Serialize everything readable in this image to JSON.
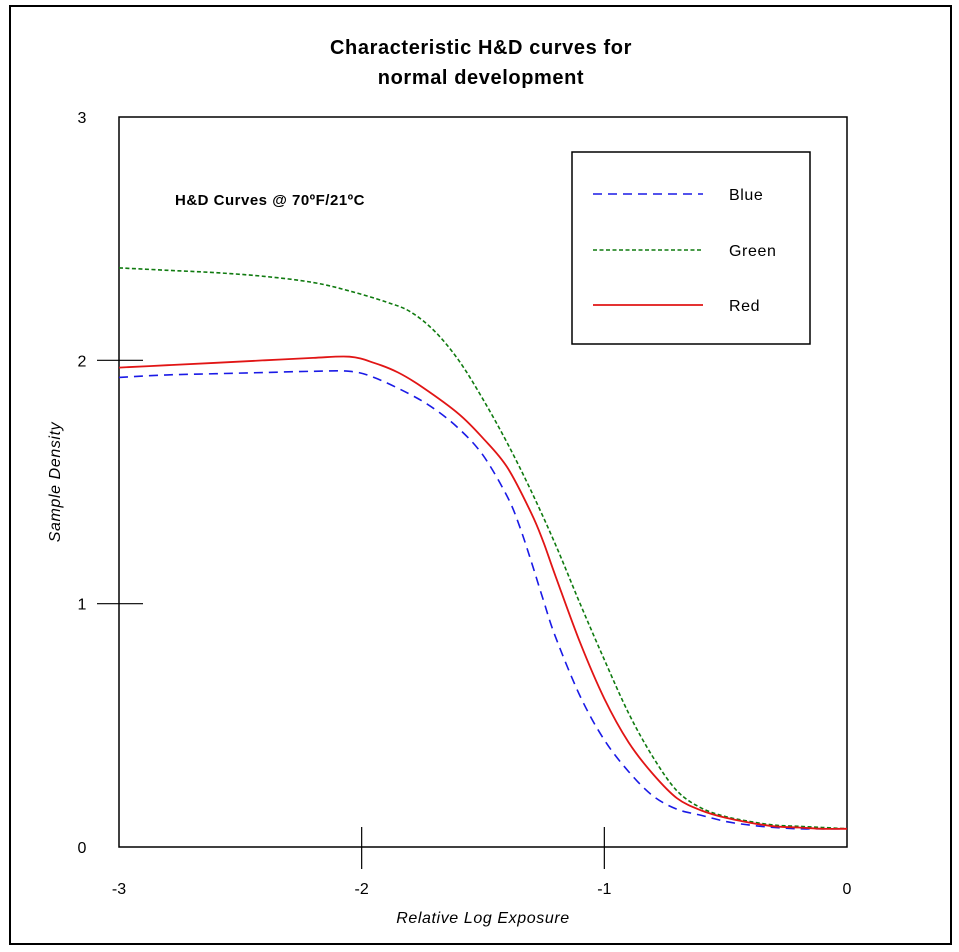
{
  "chart_data": {
    "type": "line",
    "title_lines": [
      "Characteristic H&D curves for",
      "normal development"
    ],
    "annotation": "H&D Curves @ 70ºF/21ºC",
    "xlabel": "Relative Log Exposure",
    "ylabel": "Sample Density",
    "xlim": [
      -3,
      0
    ],
    "ylim": [
      0,
      3
    ],
    "x_ticks": [
      -3,
      -2,
      -1,
      0
    ],
    "y_ticks": [
      0,
      1,
      2,
      3
    ],
    "x_tick_labels": [
      "-3",
      "-2",
      "-1",
      "0"
    ],
    "y_tick_labels": [
      "0",
      "1",
      "2",
      "3"
    ],
    "grid": false,
    "legend_position": "top-right",
    "series": [
      {
        "name": "Blue",
        "color": "#1a1ae6",
        "dash": "dashed",
        "x": [
          -3.0,
          -2.8,
          -2.6,
          -2.4,
          -2.2,
          -2.05,
          -1.95,
          -1.8,
          -1.7,
          -1.6,
          -1.5,
          -1.4,
          -1.35,
          -1.3,
          -1.25,
          -1.2,
          -1.1,
          -1.0,
          -0.9,
          -0.8,
          -0.7,
          -0.6,
          -0.5,
          -0.4,
          -0.3,
          -0.2,
          -0.1,
          0.0
        ],
        "y": [
          1.93,
          1.94,
          1.945,
          1.95,
          1.955,
          1.955,
          1.93,
          1.86,
          1.8,
          1.72,
          1.61,
          1.44,
          1.32,
          1.17,
          1.01,
          0.86,
          0.62,
          0.44,
          0.31,
          0.21,
          0.155,
          0.13,
          0.105,
          0.09,
          0.08,
          0.075,
          0.075,
          0.075
        ]
      },
      {
        "name": "Green",
        "color": "#0f7a0f",
        "dash": "dotted",
        "x": [
          -3.0,
          -2.8,
          -2.6,
          -2.4,
          -2.2,
          -2.05,
          -1.9,
          -1.8,
          -1.7,
          -1.6,
          -1.5,
          -1.4,
          -1.3,
          -1.2,
          -1.1,
          -1.0,
          -0.9,
          -0.8,
          -0.7,
          -0.6,
          -0.5,
          -0.4,
          -0.3,
          -0.2,
          -0.1,
          0.0
        ],
        "y": [
          2.38,
          2.37,
          2.36,
          2.345,
          2.32,
          2.285,
          2.24,
          2.2,
          2.12,
          2.0,
          1.84,
          1.66,
          1.46,
          1.24,
          1.0,
          0.77,
          0.55,
          0.37,
          0.23,
          0.16,
          0.125,
          0.105,
          0.09,
          0.085,
          0.08,
          0.075
        ]
      },
      {
        "name": "Red",
        "color": "#e11515",
        "dash": "solid",
        "x": [
          -3.0,
          -2.8,
          -2.6,
          -2.4,
          -2.2,
          -2.05,
          -1.95,
          -1.85,
          -1.75,
          -1.6,
          -1.5,
          -1.4,
          -1.3,
          -1.25,
          -1.2,
          -1.1,
          -1.0,
          -0.9,
          -0.8,
          -0.7,
          -0.6,
          -0.5,
          -0.4,
          -0.3,
          -0.2,
          -0.1,
          0.0
        ],
        "y": [
          1.97,
          1.98,
          1.99,
          2.0,
          2.01,
          2.015,
          1.99,
          1.95,
          1.89,
          1.78,
          1.68,
          1.56,
          1.37,
          1.25,
          1.11,
          0.84,
          0.61,
          0.43,
          0.3,
          0.2,
          0.15,
          0.12,
          0.1,
          0.085,
          0.08,
          0.075,
          0.075
        ]
      }
    ]
  }
}
